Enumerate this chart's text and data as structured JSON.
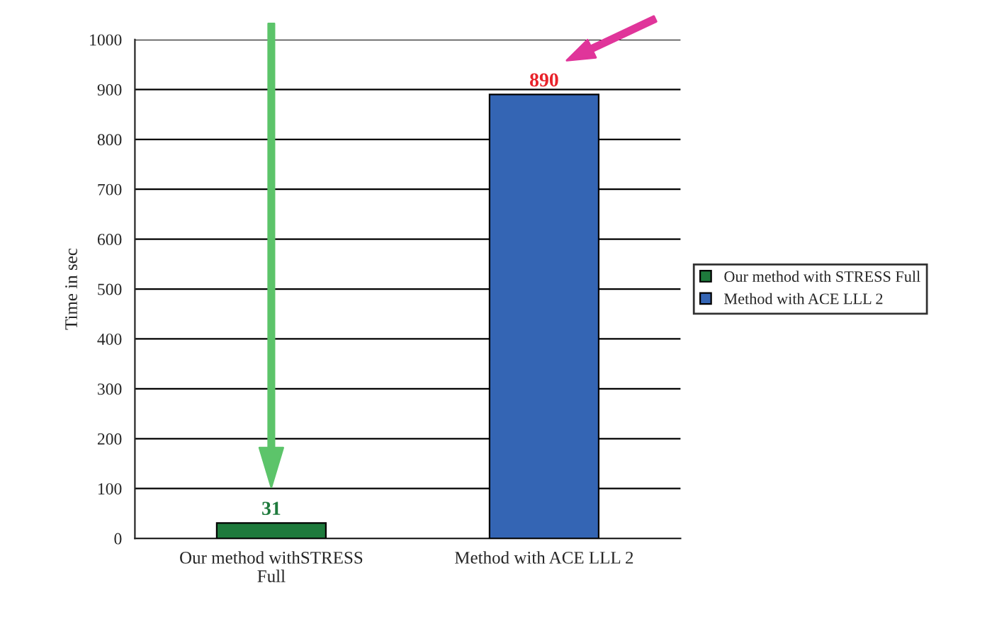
{
  "chart_data": {
    "type": "bar",
    "ylabel": "Time in sec",
    "categories": [
      "Our method withSTRESS Full",
      "Method with ACE LLL 2"
    ],
    "series": [
      {
        "name": "Our method with STRESS Full",
        "color": "#1e7a3c",
        "values": [
          31,
          null
        ]
      },
      {
        "name": "Method with ACE LLL 2",
        "color": "#3465b4",
        "values": [
          null,
          890
        ]
      }
    ],
    "ylim": [
      0,
      1000
    ],
    "yticks": [
      0,
      100,
      200,
      300,
      400,
      500,
      600,
      700,
      800,
      900,
      1000
    ],
    "grid": "y",
    "legend": "right",
    "data_labels": true
  }
}
